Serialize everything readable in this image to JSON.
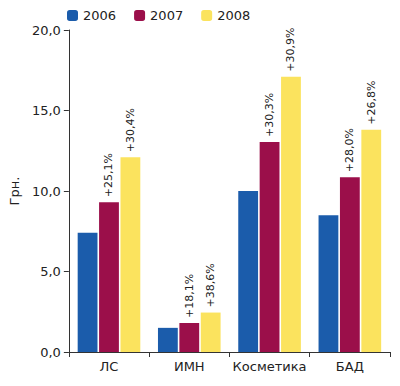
{
  "chart_data": {
    "type": "bar",
    "categories": [
      "ЛС",
      "ИМН",
      "Косметика",
      "БАД"
    ],
    "series": [
      {
        "name": "2006",
        "color": "#1b5cab",
        "values": [
          7.4,
          1.5,
          10.0,
          8.5
        ]
      },
      {
        "name": "2007",
        "color": "#9b0f4a",
        "values": [
          9.3,
          1.8,
          13.05,
          10.85
        ]
      },
      {
        "name": "2008",
        "color": "#fbe35e",
        "values": [
          12.1,
          2.45,
          17.1,
          13.8
        ]
      }
    ],
    "ylabel": "Грн.",
    "ylim": [
      0,
      20
    ],
    "yticks": [
      {
        "value": 0,
        "label": "0,0"
      },
      {
        "value": 5,
        "label": "5,0"
      },
      {
        "value": 10,
        "label": "10,0"
      },
      {
        "value": 15,
        "label": "15,0"
      },
      {
        "value": 20,
        "label": "20,0"
      }
    ],
    "grid": false,
    "legend": "top",
    "annotations": [
      {
        "series": "2007",
        "category": "ЛС",
        "text": "+25,1%"
      },
      {
        "series": "2007",
        "category": "ИМН",
        "text": "+18,1%"
      },
      {
        "series": "2007",
        "category": "Косметика",
        "text": "+30,3%"
      },
      {
        "series": "2007",
        "category": "БАД",
        "text": "+28,0%"
      },
      {
        "series": "2008",
        "category": "ЛС",
        "text": "+30,4%"
      },
      {
        "series": "2008",
        "category": "ИМН",
        "text": "+38,6%"
      },
      {
        "series": "2008",
        "category": "Косметика",
        "text": "+30,9%"
      },
      {
        "series": "2008",
        "category": "БАД",
        "text": "+26,8%"
      }
    ]
  }
}
